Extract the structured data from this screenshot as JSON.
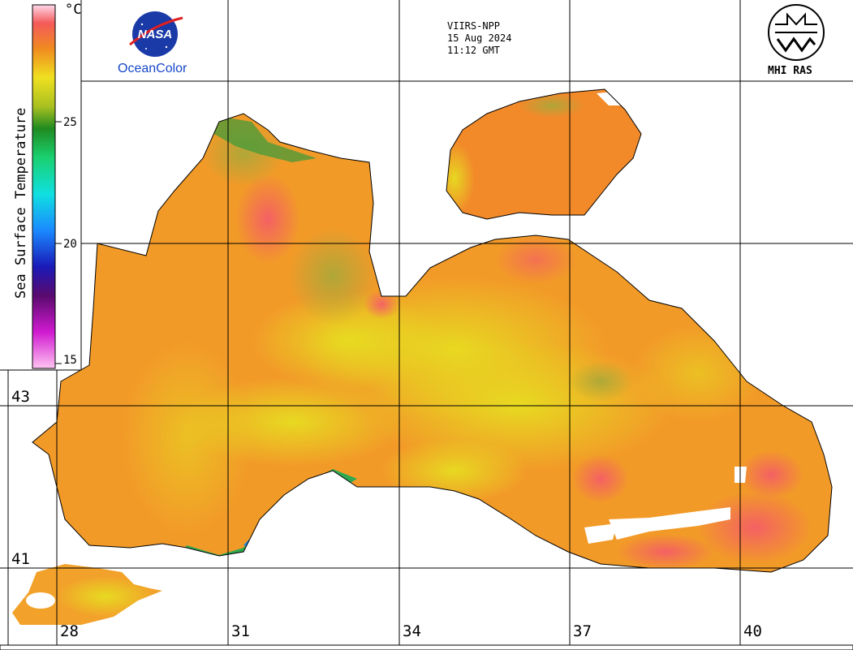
{
  "header": {
    "sensor": "VIIRS-NPP",
    "date": "15 Aug 2024",
    "time": "11:12 GMT"
  },
  "logos": {
    "nasa_text": "NASA",
    "oceancolor": "OceanColor",
    "mhi": "MHI RAS"
  },
  "colorbar": {
    "title": "Sea Surface Temperature",
    "unit": "°C",
    "ticks": [
      "25",
      "20",
      "15"
    ]
  },
  "axes": {
    "lon_labels": [
      "28",
      "31",
      "34",
      "37",
      "40"
    ],
    "lat_labels": [
      "43",
      "41"
    ]
  },
  "colors": {
    "warm": "#f28a2a",
    "hot": "#f45a5a",
    "mild": "#e8d22a",
    "cool": "#2ea82e",
    "cold": "#1a2ed0",
    "coldest": "#c01ac8",
    "land": "#ffffff"
  }
}
